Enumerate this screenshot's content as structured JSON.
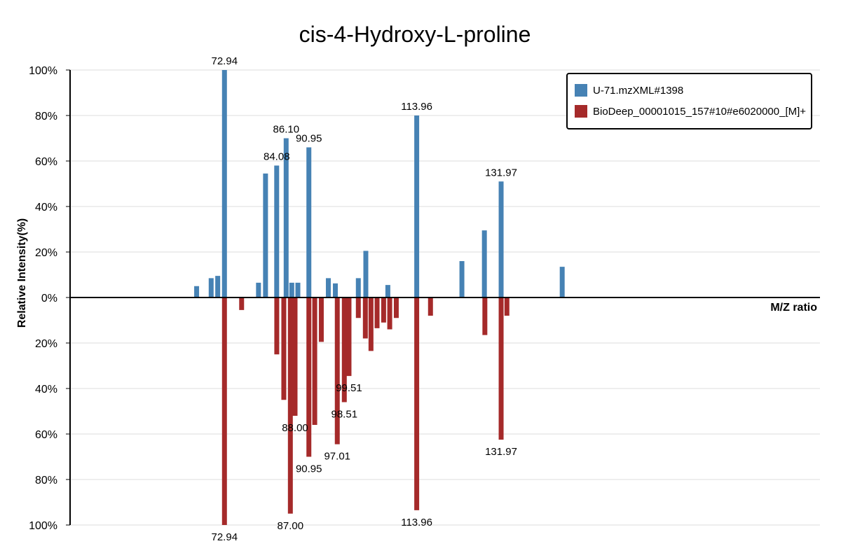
{
  "chart_data": {
    "type": "bar",
    "title": "cis-4-Hydroxy-L-proline",
    "xlabel": "M/Z ratio",
    "ylabel": "Relative Intensity(%)",
    "xlim": [
      40,
      200
    ],
    "ylim": [
      -100,
      100
    ],
    "y_ticks": [
      {
        "value": 100,
        "label": "100%"
      },
      {
        "value": 80,
        "label": "80%"
      },
      {
        "value": 60,
        "label": "60%"
      },
      {
        "value": 40,
        "label": "40%"
      },
      {
        "value": 20,
        "label": "20%"
      },
      {
        "value": 0,
        "label": "0%"
      },
      {
        "value": -20,
        "label": "20%"
      },
      {
        "value": -40,
        "label": "40%"
      },
      {
        "value": -60,
        "label": "60%"
      },
      {
        "value": -80,
        "label": "80%"
      },
      {
        "value": -100,
        "label": "100%"
      }
    ],
    "grid": true,
    "legend_position": "top-right",
    "series": [
      {
        "name": "U-71.mzXML#1398",
        "color": "#4682b4",
        "direction": "up",
        "peaks": [
          {
            "mz": 67.0,
            "intensity": 5
          },
          {
            "mz": 70.1,
            "intensity": 8.5
          },
          {
            "mz": 71.5,
            "intensity": 9.5
          },
          {
            "mz": 72.94,
            "intensity": 100,
            "label": "72.94"
          },
          {
            "mz": 80.2,
            "intensity": 6.5
          },
          {
            "mz": 81.7,
            "intensity": 54.5
          },
          {
            "mz": 84.08,
            "intensity": 58,
            "label": "84.08"
          },
          {
            "mz": 86.1,
            "intensity": 70,
            "label": "86.10"
          },
          {
            "mz": 87.3,
            "intensity": 6.5
          },
          {
            "mz": 88.6,
            "intensity": 6.5
          },
          {
            "mz": 90.95,
            "intensity": 66,
            "label": "90.95"
          },
          {
            "mz": 95.1,
            "intensity": 8.5
          },
          {
            "mz": 96.6,
            "intensity": 6.2
          },
          {
            "mz": 101.5,
            "intensity": 8.5
          },
          {
            "mz": 103.1,
            "intensity": 20.5
          },
          {
            "mz": 107.8,
            "intensity": 5.5
          },
          {
            "mz": 113.96,
            "intensity": 80,
            "label": "113.96"
          },
          {
            "mz": 123.6,
            "intensity": 16
          },
          {
            "mz": 128.4,
            "intensity": 29.5
          },
          {
            "mz": 131.97,
            "intensity": 51,
            "label": "131.97"
          },
          {
            "mz": 145.0,
            "intensity": 13.5
          }
        ]
      },
      {
        "name": "BioDeep_00001015_157#10#e6020000_[M]+",
        "color": "#a52a2a",
        "direction": "down",
        "peaks": [
          {
            "mz": 72.94,
            "intensity": 100,
            "label": "72.94"
          },
          {
            "mz": 76.6,
            "intensity": 5.5
          },
          {
            "mz": 84.1,
            "intensity": 25
          },
          {
            "mz": 85.6,
            "intensity": 45
          },
          {
            "mz": 87.0,
            "intensity": 95,
            "label": "87.00"
          },
          {
            "mz": 88.0,
            "intensity": 52,
            "label": "88.00"
          },
          {
            "mz": 90.95,
            "intensity": 70,
            "label": "90.95"
          },
          {
            "mz": 92.2,
            "intensity": 56
          },
          {
            "mz": 93.6,
            "intensity": 19.5
          },
          {
            "mz": 97.01,
            "intensity": 64.5,
            "label": "97.01"
          },
          {
            "mz": 98.51,
            "intensity": 46,
            "label": "98.51"
          },
          {
            "mz": 99.51,
            "intensity": 34.5,
            "label": "99.51"
          },
          {
            "mz": 101.5,
            "intensity": 9
          },
          {
            "mz": 103.0,
            "intensity": 18
          },
          {
            "mz": 104.2,
            "intensity": 23.5
          },
          {
            "mz": 105.5,
            "intensity": 13.5
          },
          {
            "mz": 106.9,
            "intensity": 11
          },
          {
            "mz": 108.2,
            "intensity": 14
          },
          {
            "mz": 109.6,
            "intensity": 9
          },
          {
            "mz": 113.96,
            "intensity": 93.5,
            "label": "113.96"
          },
          {
            "mz": 116.9,
            "intensity": 8
          },
          {
            "mz": 128.5,
            "intensity": 16.5
          },
          {
            "mz": 131.97,
            "intensity": 62.5,
            "label": "131.97"
          },
          {
            "mz": 133.2,
            "intensity": 8
          }
        ]
      }
    ]
  }
}
